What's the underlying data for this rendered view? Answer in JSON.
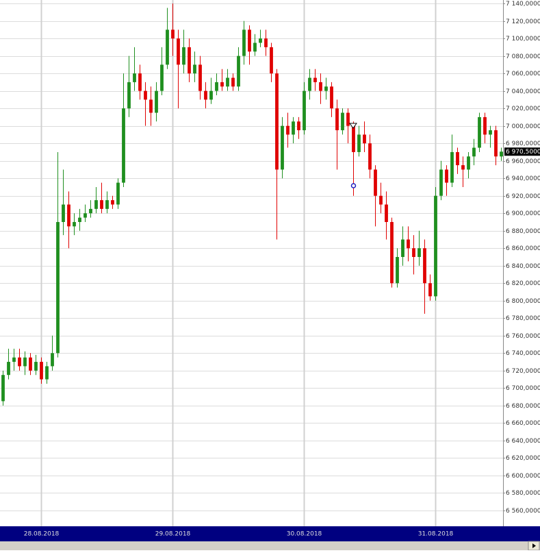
{
  "chart_data": {
    "type": "candlestick",
    "up_color": "#1f8f1f",
    "down_color": "#e00000",
    "grid": true,
    "open": [
      6685,
      6715,
      6730,
      6735,
      6725,
      6735,
      6720,
      6730,
      6710,
      6725,
      6740,
      6890,
      6910,
      6885,
      6890,
      6895,
      6900,
      6905,
      6915,
      6905,
      6915,
      6910,
      6935,
      7020,
      7050,
      7060,
      7040,
      7030,
      7015,
      7040,
      7070,
      7110,
      7100,
      7070,
      7090,
      7060,
      7070,
      7040,
      7030,
      7040,
      7050,
      7045,
      7055,
      7045,
      7080,
      7110,
      7085,
      7095,
      7100,
      7090,
      7060,
      6950,
      7000,
      6990,
      7005,
      6995,
      7040,
      7055,
      7050,
      7040,
      7045,
      7020,
      6995,
      7015,
      7000,
      6970,
      6990,
      6980,
      6950,
      6920,
      6910,
      6890,
      6820,
      6850,
      6870,
      6860,
      6850,
      6860,
      6820,
      6805,
      6920,
      6950,
      6935,
      6970,
      6955,
      6950,
      6965,
      6975,
      7010,
      6990,
      6995,
      6965
    ],
    "high": [
      6720,
      6745,
      6745,
      6745,
      6742,
      6740,
      6738,
      6735,
      6730,
      6760,
      6970,
      6950,
      6925,
      6900,
      6905,
      6910,
      6915,
      6930,
      6935,
      6925,
      6920,
      6940,
      7060,
      7080,
      7090,
      7070,
      7050,
      7045,
      7050,
      7090,
      7135,
      7140,
      7110,
      7110,
      7100,
      7085,
      7080,
      7050,
      7055,
      7060,
      7065,
      7065,
      7060,
      7090,
      7120,
      7115,
      7105,
      7110,
      7110,
      7095,
      7065,
      7010,
      7015,
      7010,
      7010,
      7050,
      7065,
      7065,
      7060,
      7055,
      7050,
      7030,
      7020,
      7020,
      7005,
      7000,
      7005,
      6990,
      6955,
      6935,
      6925,
      6895,
      6860,
      6885,
      6885,
      6875,
      6880,
      6870,
      6830,
      6930,
      6960,
      6955,
      6990,
      6975,
      6965,
      6970,
      6985,
      7015,
      7015,
      7000,
      7000,
      6975
    ],
    "low": [
      6680,
      6710,
      6720,
      6720,
      6715,
      6715,
      6715,
      6705,
      6705,
      6720,
      6735,
      6875,
      6860,
      6875,
      6880,
      6890,
      6895,
      6900,
      6900,
      6900,
      6905,
      6905,
      6930,
      7010,
      7040,
      7030,
      7000,
      7000,
      7005,
      7035,
      7065,
      7080,
      7020,
      7060,
      7050,
      7050,
      7030,
      7020,
      7025,
      7035,
      7040,
      7040,
      7040,
      7040,
      7070,
      7070,
      7080,
      7090,
      7080,
      7050,
      6870,
      6940,
      6975,
      6980,
      6985,
      6990,
      7030,
      7040,
      7025,
      7030,
      7010,
      6950,
      6990,
      6980,
      6920,
      6965,
      6970,
      6940,
      6885,
      6900,
      6870,
      6815,
      6815,
      6840,
      6845,
      6830,
      6840,
      6785,
      6800,
      6800,
      6915,
      6920,
      6930,
      6945,
      6930,
      6940,
      6955,
      6970,
      6980,
      6975,
      6955,
      6960
    ],
    "close": [
      6715,
      6730,
      6735,
      6725,
      6735,
      6720,
      6730,
      6710,
      6725,
      6740,
      6890,
      6910,
      6885,
      6890,
      6895,
      6900,
      6905,
      6915,
      6905,
      6915,
      6910,
      6935,
      7020,
      7050,
      7060,
      7040,
      7030,
      7015,
      7040,
      7070,
      7110,
      7100,
      7070,
      7090,
      7060,
      7070,
      7040,
      7030,
      7040,
      7050,
      7045,
      7055,
      7045,
      7080,
      7110,
      7085,
      7095,
      7100,
      7090,
      7060,
      6950,
      7000,
      6990,
      7005,
      6995,
      7040,
      7055,
      7050,
      7040,
      7045,
      7020,
      6995,
      7015,
      7000,
      6970,
      6990,
      6980,
      6950,
      6920,
      6910,
      6890,
      6820,
      6850,
      6870,
      6860,
      6850,
      6860,
      6820,
      6805,
      6920,
      6950,
      6935,
      6970,
      6955,
      6950,
      6965,
      6975,
      7010,
      6990,
      6995,
      6965,
      6970.5
    ],
    "last_price": {
      "value": 6970.5,
      "label": "6 970,5000"
    },
    "xlim": [
      -0.5,
      91.4
    ],
    "xticks": [
      {
        "value": 7,
        "label": "28.08.2018"
      },
      {
        "value": 31,
        "label": "29.08.2018"
      },
      {
        "value": 55,
        "label": "30.08.2018"
      },
      {
        "value": 79,
        "label": "31.08.2018"
      }
    ],
    "ylim": [
      6556,
      7144
    ],
    "yticks": [
      {
        "value": 6560,
        "label": "6 560,0000"
      },
      {
        "value": 6580,
        "label": "6 580,0000"
      },
      {
        "value": 6600,
        "label": "6 600,0000"
      },
      {
        "value": 6620,
        "label": "6 620,0000"
      },
      {
        "value": 6640,
        "label": "6 640,0000"
      },
      {
        "value": 6660,
        "label": "6 660,0000"
      },
      {
        "value": 6680,
        "label": "6 680,0000"
      },
      {
        "value": 6700,
        "label": "6 700,0000"
      },
      {
        "value": 6720,
        "label": "6 720,0000"
      },
      {
        "value": 6740,
        "label": "6 740,0000"
      },
      {
        "value": 6760,
        "label": "6 760,0000"
      },
      {
        "value": 6780,
        "label": "6 780,0000"
      },
      {
        "value": 6800,
        "label": "6 800,0000"
      },
      {
        "value": 6820,
        "label": "6 820,0000"
      },
      {
        "value": 6840,
        "label": "6 840,0000"
      },
      {
        "value": 6860,
        "label": "6 860,0000"
      },
      {
        "value": 6880,
        "label": "6 880,0000"
      },
      {
        "value": 6900,
        "label": "6 900,0000"
      },
      {
        "value": 6920,
        "label": "6 920,0000"
      },
      {
        "value": 6940,
        "label": "6 940,0000"
      },
      {
        "value": 6960,
        "label": "6 960,0000"
      },
      {
        "value": 6980,
        "label": "6 980,0000"
      },
      {
        "value": 7000,
        "label": "7 000,0000"
      },
      {
        "value": 7020,
        "label": "7 020,0000"
      },
      {
        "value": 7040,
        "label": "7 040,0000"
      },
      {
        "value": 7060,
        "label": "7 060,0000"
      },
      {
        "value": 7080,
        "label": "7 080,0000"
      },
      {
        "value": 7100,
        "label": "7 100,0000"
      },
      {
        "value": 7120,
        "label": "7 120,0000"
      },
      {
        "value": 7140,
        "label": "7 140,0000"
      }
    ]
  }
}
